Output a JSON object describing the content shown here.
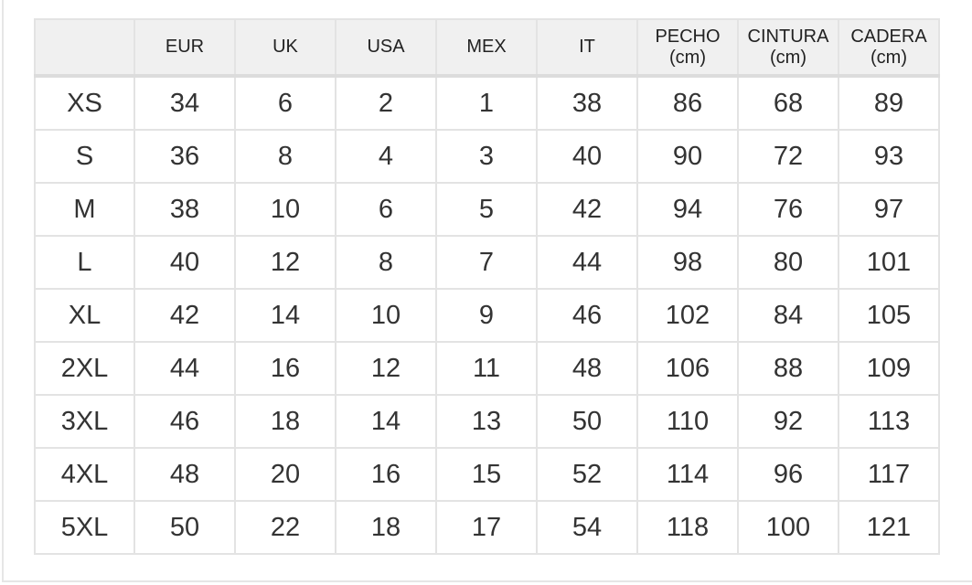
{
  "headers": [
    "",
    "EUR",
    "UK",
    "USA",
    "MEX",
    "IT",
    "PECHO\n(cm)",
    "CINTURA\n(cm)",
    "CADERA\n(cm)"
  ],
  "header_lines": [
    [
      "",
      ""
    ],
    [
      "EUR",
      ""
    ],
    [
      "UK",
      ""
    ],
    [
      "USA",
      ""
    ],
    [
      "MEX",
      ""
    ],
    [
      "IT",
      ""
    ],
    [
      "PECHO",
      "(cm)"
    ],
    [
      "CINTURA",
      "(cm)"
    ],
    [
      "CADERA",
      "(cm)"
    ]
  ],
  "rows": [
    [
      "XS",
      "34",
      "6",
      "2",
      "1",
      "38",
      "86",
      "68",
      "89"
    ],
    [
      "S",
      "36",
      "8",
      "4",
      "3",
      "40",
      "90",
      "72",
      "93"
    ],
    [
      "M",
      "38",
      "10",
      "6",
      "5",
      "42",
      "94",
      "76",
      "97"
    ],
    [
      "L",
      "40",
      "12",
      "8",
      "7",
      "44",
      "98",
      "80",
      "101"
    ],
    [
      "XL",
      "42",
      "14",
      "10",
      "9",
      "46",
      "102",
      "84",
      "105"
    ],
    [
      "2XL",
      "44",
      "16",
      "12",
      "11",
      "48",
      "106",
      "88",
      "109"
    ],
    [
      "3XL",
      "46",
      "18",
      "14",
      "13",
      "50",
      "110",
      "92",
      "113"
    ],
    [
      "4XL",
      "48",
      "20",
      "16",
      "15",
      "52",
      "114",
      "96",
      "117"
    ],
    [
      "5XL",
      "50",
      "22",
      "18",
      "17",
      "54",
      "118",
      "100",
      "121"
    ]
  ]
}
